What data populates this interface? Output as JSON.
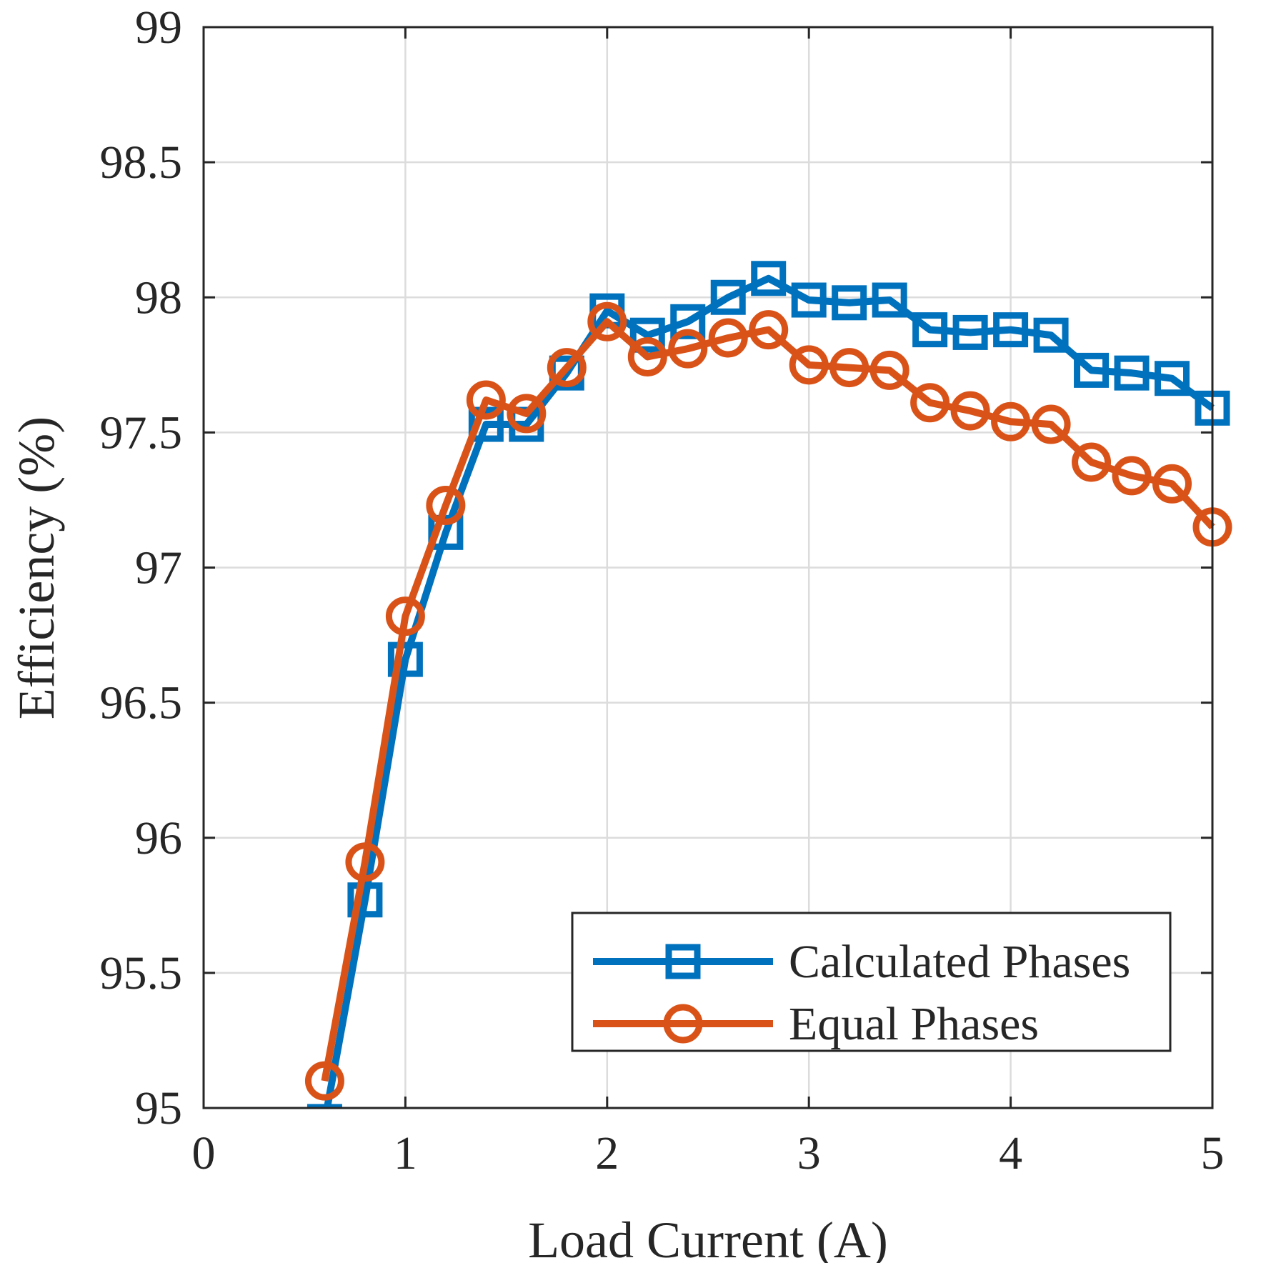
{
  "chart_data": {
    "type": "line",
    "xlabel": "Load Current (A)",
    "ylabel": "Efficiency (%)",
    "xlim": [
      0,
      5
    ],
    "ylim": [
      95,
      99
    ],
    "xticks": [
      0,
      1,
      2,
      3,
      4,
      5
    ],
    "xtick_labels": [
      "0",
      "1",
      "2",
      "3",
      "4",
      "5"
    ],
    "yticks": [
      95,
      95.5,
      96,
      96.5,
      97,
      97.5,
      98,
      98.5,
      99
    ],
    "ytick_labels": [
      "95",
      "95.5",
      "96",
      "96.5",
      "97",
      "97.5",
      "98",
      "98.5",
      "99"
    ],
    "grid": true,
    "legend_position": "bottom-right",
    "x": [
      0.6,
      0.8,
      1.0,
      1.2,
      1.4,
      1.6,
      1.8,
      2.0,
      2.2,
      2.4,
      2.6,
      2.8,
      3.0,
      3.2,
      3.4,
      3.6,
      3.8,
      4.0,
      4.2,
      4.4,
      4.6,
      4.8,
      5.0
    ],
    "series": [
      {
        "name": "Calculated Phases",
        "color": "#0072BD",
        "marker": "square",
        "values": [
          94.95,
          95.77,
          96.66,
          97.13,
          97.53,
          97.53,
          97.72,
          97.95,
          97.86,
          97.91,
          98.0,
          98.07,
          97.99,
          97.98,
          97.99,
          97.88,
          97.87,
          97.88,
          97.86,
          97.73,
          97.72,
          97.7,
          97.59
        ]
      },
      {
        "name": "Equal Phases",
        "color": "#D95319",
        "marker": "circle",
        "values": [
          95.1,
          95.91,
          96.82,
          97.23,
          97.62,
          97.57,
          97.74,
          97.91,
          97.78,
          97.81,
          97.85,
          97.88,
          97.75,
          97.74,
          97.73,
          97.61,
          97.58,
          97.54,
          97.53,
          97.39,
          97.34,
          97.31,
          97.15
        ]
      }
    ]
  }
}
